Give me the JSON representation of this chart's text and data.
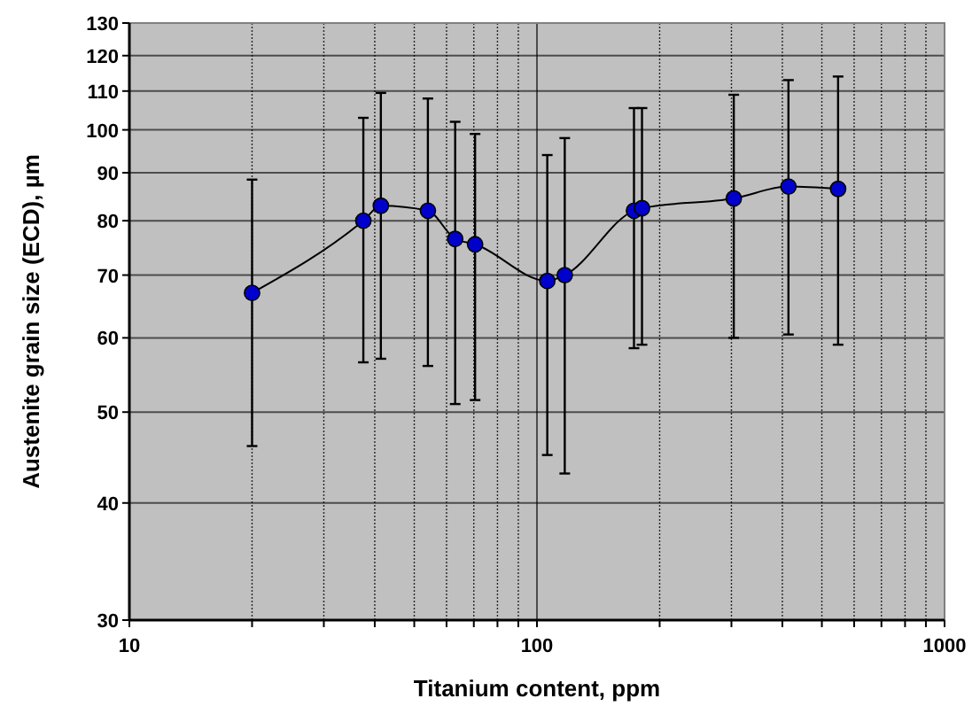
{
  "chart_data": {
    "type": "line",
    "xlabel": "Titanium content, ppm",
    "ylabel": "Austenite grain size (ECD), µm",
    "log": "xy",
    "grid": true,
    "marker": "circle",
    "line_style": "solid",
    "xlim": [
      10,
      1000
    ],
    "ylim": [
      30,
      130
    ],
    "xticks": [
      10,
      {
        "value": 20,
        "label": null
      },
      {
        "value": 30,
        "label": null
      },
      {
        "value": 40,
        "label": null
      },
      {
        "value": 50,
        "label": null
      },
      {
        "value": 60,
        "label": null
      },
      {
        "value": 70,
        "label": null
      },
      {
        "value": 80,
        "label": null
      },
      {
        "value": 90,
        "label": null
      },
      100,
      {
        "value": 200,
        "label": null
      },
      {
        "value": 300,
        "label": null
      },
      {
        "value": 400,
        "label": null
      },
      {
        "value": 500,
        "label": null
      },
      {
        "value": 600,
        "label": null
      },
      {
        "value": 700,
        "label": null
      },
      {
        "value": 800,
        "label": null
      },
      {
        "value": 900,
        "label": null
      },
      1000
    ],
    "yticks": [
      30,
      40,
      50,
      60,
      70,
      80,
      90,
      100,
      110,
      120,
      130
    ],
    "x": [
      20,
      37.5,
      41.4,
      54,
      63,
      70.5,
      106,
      117,
      173,
      181,
      304,
      414,
      548
    ],
    "series": [
      {
        "color": "#0000cc",
        "values": [
          67,
          80,
          83,
          82,
          76.5,
          75.5,
          69,
          70,
          82,
          82.5,
          84.5,
          87,
          86.5
        ],
        "errors": [
          [
            46,
            88.5
          ],
          [
            56.5,
            103
          ],
          [
            57,
            109.5
          ],
          [
            56,
            108
          ],
          [
            51,
            102
          ],
          [
            51.5,
            99
          ],
          [
            45,
            94
          ],
          [
            43,
            98
          ],
          [
            58.5,
            105.5
          ],
          [
            59,
            105.5
          ],
          [
            60,
            109
          ],
          [
            60.5,
            113
          ],
          [
            59,
            114
          ]
        ]
      }
    ]
  }
}
